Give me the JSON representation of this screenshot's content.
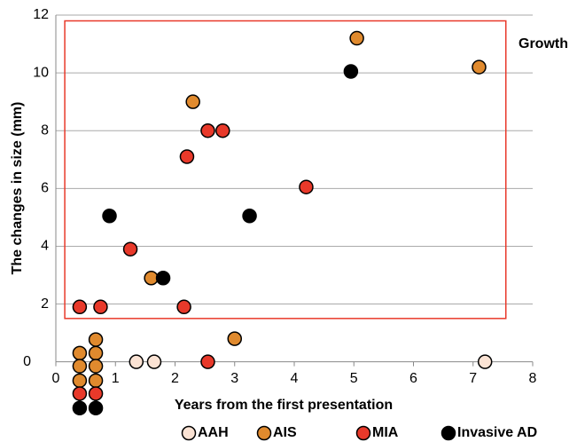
{
  "chart_data": {
    "type": "scatter",
    "xlabel": "Years from the first presentation",
    "ylabel": "The changes in size (mm)",
    "xlim": [
      0,
      8
    ],
    "xticks": [
      0,
      1,
      2,
      3,
      4,
      5,
      6,
      7,
      8
    ],
    "ylim": [
      -1.7,
      12
    ],
    "yticks": [
      0,
      2,
      4,
      6,
      8,
      10,
      12
    ],
    "grid": true,
    "region": {
      "label": "Growth",
      "color": "#e8392a",
      "xlim": [
        0.15,
        7.55
      ],
      "ylim": [
        1.5,
        11.8
      ]
    },
    "series": [
      {
        "name": "AAH",
        "color": "#fbe3d4",
        "x": [
          1.35,
          1.65,
          7.2
        ],
        "values": [
          0,
          0,
          0
        ]
      },
      {
        "name": "AIS",
        "color": "#e08a2e",
        "x": [
          2.3,
          5.05,
          7.1,
          1.6,
          3.0,
          0.4,
          0.4,
          0.4,
          0.67,
          0.67,
          0.67,
          0.67
        ],
        "values": [
          9,
          11.2,
          10.2,
          2.9,
          0.8,
          0.3,
          -0.15,
          -0.65,
          0.77,
          0.3,
          -0.15,
          -0.65
        ]
      },
      {
        "name": "MIA",
        "color": "#e8392a",
        "x": [
          0.4,
          0.75,
          1.25,
          2.2,
          2.55,
          2.8,
          4.2,
          2.15,
          2.55,
          0.4,
          0.67
        ],
        "values": [
          1.9,
          1.9,
          3.9,
          7.1,
          8.0,
          8.0,
          6.05,
          1.9,
          0,
          -1.1,
          -1.1
        ]
      },
      {
        "name": "Invasive AD",
        "color": "#000000",
        "x": [
          0.9,
          1.8,
          3.25,
          4.95,
          0.4,
          0.67
        ],
        "values": [
          5.05,
          2.9,
          5.05,
          10.05,
          -1.6,
          -1.6
        ]
      }
    ]
  }
}
